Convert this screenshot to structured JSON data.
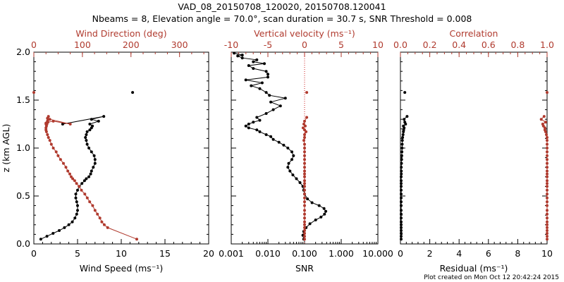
{
  "header": {
    "title_line1": "VAD_08_20150708_120020, 20150708.120041",
    "title_line2": "Nbeams = 8, Elevation angle = 70.0°, scan duration = 30.7 s, SNR Threshold = 0.008"
  },
  "footer": {
    "created": "Plot created on Mon Oct 12 20:42:24 2015"
  },
  "colors": {
    "black": "#000000",
    "red": "#b03a2e",
    "grid_red": "#cc2222"
  },
  "chart_data": [
    {
      "type": "line",
      "name": "wind-panel",
      "ylabel": "z (km AGL)",
      "ylim": [
        0,
        2
      ],
      "yticks": [
        "0.0",
        "0.5",
        "1.0",
        "1.5",
        "2.0"
      ],
      "bottom_axis": {
        "label": "Wind Speed (ms⁻¹)",
        "xlim": [
          0,
          20
        ],
        "ticks": [
          "0",
          "5",
          "10",
          "15",
          "20"
        ]
      },
      "top_axis": {
        "label": "Wind Direction (deg)",
        "xlim": [
          0,
          360
        ],
        "ticks": [
          "0",
          "100",
          "200",
          "300"
        ]
      },
      "series": [
        {
          "name": "Wind Speed",
          "axis": "bottom",
          "color": "#000000",
          "x": [
            0.8,
            1.5,
            2.2,
            2.9,
            3.5,
            4.0,
            4.4,
            4.7,
            4.9,
            5.0,
            5.0,
            4.9,
            4.8,
            4.8,
            5.0,
            5.2,
            5.5,
            5.8,
            6.0,
            6.3,
            6.5,
            6.6,
            6.8,
            7.0,
            7.0,
            6.9,
            6.6,
            6.3,
            6.1,
            6.0,
            5.9,
            6.0,
            6.1,
            6.4,
            6.6,
            6.7,
            6.4,
            7.4,
            6.6,
            8.0,
            3.3
          ],
          "z": [
            0.05,
            0.08,
            0.11,
            0.14,
            0.17,
            0.2,
            0.23,
            0.27,
            0.31,
            0.35,
            0.4,
            0.44,
            0.48,
            0.52,
            0.56,
            0.6,
            0.63,
            0.66,
            0.68,
            0.7,
            0.73,
            0.76,
            0.8,
            0.84,
            0.88,
            0.92,
            0.96,
            1.0,
            1.04,
            1.08,
            1.11,
            1.14,
            1.17,
            1.19,
            1.21,
            1.23,
            1.25,
            1.28,
            1.3,
            1.33,
            1.25
          ]
        },
        {
          "name": "Wind Speed (isolated)",
          "axis": "bottom",
          "color": "#000000",
          "x": [
            11.3
          ],
          "z": [
            1.58
          ]
        },
        {
          "name": "Wind Direction",
          "axis": "top",
          "color": "#b03a2e",
          "x": [
            212,
            152,
            145,
            140,
            136,
            131,
            126,
            121,
            115,
            110,
            105,
            98,
            93,
            88,
            84,
            80,
            77,
            74,
            70,
            66,
            61,
            55,
            50,
            46,
            40,
            36,
            33,
            30,
            28,
            26,
            25,
            25,
            26,
            27,
            28,
            30,
            30,
            28,
            25,
            25,
            29,
            40,
            75,
            33
          ],
          "z": [
            0.05,
            0.17,
            0.2,
            0.23,
            0.27,
            0.31,
            0.35,
            0.4,
            0.44,
            0.48,
            0.52,
            0.56,
            0.6,
            0.63,
            0.66,
            0.68,
            0.7,
            0.73,
            0.76,
            0.8,
            0.84,
            0.88,
            0.92,
            0.96,
            1.0,
            1.04,
            1.08,
            1.11,
            1.14,
            1.17,
            1.19,
            1.21,
            1.23,
            1.25,
            1.28,
            1.3,
            1.33,
            1.31,
            1.26,
            1.25,
            1.27,
            1.28,
            1.25,
            1.3
          ]
        },
        {
          "name": "Wind Direction (isolated)",
          "axis": "top",
          "color": "#b03a2e",
          "x": [
            0
          ],
          "z": [
            1.58
          ]
        }
      ]
    },
    {
      "type": "line",
      "name": "snr-panel",
      "ylim": [
        0,
        2
      ],
      "bottom_axis": {
        "label": "SNR",
        "scale": "log",
        "xlim": [
          0.001,
          10
        ],
        "ticks": [
          "0.001",
          "0.010",
          "0.100",
          "1.000",
          "10.000"
        ]
      },
      "top_axis": {
        "label": "Vertical velocity (ms⁻¹)",
        "xlim": [
          -10,
          10
        ],
        "ticks": [
          "-10",
          "-5",
          "0",
          "5",
          "10"
        ]
      },
      "zero_line": {
        "axis": "top",
        "value": 0,
        "style": "dotted"
      },
      "series": [
        {
          "name": "SNR",
          "axis": "bottom",
          "color": "#000000",
          "x": [
            0.095,
            0.09,
            0.095,
            0.11,
            0.14,
            0.2,
            0.28,
            0.35,
            0.38,
            0.34,
            0.25,
            0.16,
            0.12,
            0.1,
            0.095,
            0.09,
            0.075,
            0.06,
            0.048,
            0.04,
            0.035,
            0.037,
            0.045,
            0.05,
            0.045,
            0.035,
            0.027,
            0.02,
            0.014,
            0.012,
            0.009,
            0.006,
            0.005,
            0.003,
            0.0025,
            0.003,
            0.004,
            0.006,
            0.005,
            0.009,
            0.014,
            0.022,
            0.012,
            0.03,
            0.011,
            0.009,
            0.006,
            0.0035,
            0.007,
            0.0025,
            0.01,
            0.01,
            0.009,
            0.004,
            0.003,
            0.008,
            0.004,
            0.005,
            0.002,
            0.0015,
            0.002,
            0.0012
          ],
          "z": [
            0.05,
            0.09,
            0.13,
            0.17,
            0.21,
            0.25,
            0.28,
            0.31,
            0.34,
            0.37,
            0.4,
            0.43,
            0.47,
            0.52,
            0.56,
            0.6,
            0.64,
            0.68,
            0.72,
            0.76,
            0.8,
            0.84,
            0.88,
            0.92,
            0.96,
            1.0,
            1.03,
            1.06,
            1.09,
            1.12,
            1.14,
            1.17,
            1.19,
            1.21,
            1.23,
            1.25,
            1.27,
            1.29,
            1.32,
            1.36,
            1.4,
            1.44,
            1.48,
            1.52,
            1.55,
            1.58,
            1.62,
            1.65,
            1.68,
            1.71,
            1.74,
            1.77,
            1.8,
            1.83,
            1.86,
            1.88,
            1.9,
            1.92,
            1.94,
            1.96,
            1.97,
            1.99
          ]
        },
        {
          "name": "Vertical velocity",
          "axis": "top",
          "color": "#b03a2e",
          "x": [
            0,
            0,
            0,
            0,
            0,
            0,
            0,
            0,
            0,
            0,
            0,
            0,
            0,
            0,
            0,
            0,
            0,
            0,
            0,
            0,
            0,
            0,
            0,
            0,
            0,
            0,
            0,
            0,
            -0.1,
            0,
            0,
            0.2,
            0,
            -0.2,
            0.1,
            -0.1,
            0,
            0.3
          ],
          "z": [
            0.05,
            0.08,
            0.11,
            0.14,
            0.17,
            0.2,
            0.23,
            0.27,
            0.31,
            0.35,
            0.4,
            0.44,
            0.48,
            0.52,
            0.56,
            0.6,
            0.63,
            0.66,
            0.7,
            0.73,
            0.76,
            0.8,
            0.84,
            0.88,
            0.92,
            0.96,
            1.0,
            1.04,
            1.08,
            1.11,
            1.14,
            1.17,
            1.19,
            1.21,
            1.23,
            1.25,
            1.28,
            1.32
          ]
        },
        {
          "name": "Vertical velocity (isolated)",
          "axis": "top",
          "color": "#b03a2e",
          "x": [
            0.3
          ],
          "z": [
            1.58
          ]
        }
      ]
    },
    {
      "type": "line",
      "name": "residual-panel",
      "ylim": [
        0,
        2
      ],
      "bottom_axis": {
        "label": "Residual (ms⁻¹)",
        "xlim": [
          0,
          10
        ],
        "ticks": [
          "0",
          "2",
          "4",
          "6",
          "8",
          "10"
        ]
      },
      "top_axis": {
        "label": "Correlation",
        "xlim": [
          0,
          1
        ],
        "ticks": [
          "0.0",
          "0.2",
          "0.4",
          "0.6",
          "0.8",
          "1.0"
        ]
      },
      "series": [
        {
          "name": "Residual",
          "axis": "bottom",
          "color": "#000000",
          "x": [
            0.05,
            0.05,
            0.05,
            0.05,
            0.05,
            0.05,
            0.05,
            0.05,
            0.05,
            0.05,
            0.05,
            0.05,
            0.05,
            0.05,
            0.05,
            0.05,
            0.05,
            0.05,
            0.05,
            0.06,
            0.06,
            0.06,
            0.07,
            0.08,
            0.09,
            0.1,
            0.11,
            0.12,
            0.13,
            0.15,
            0.18,
            0.2,
            0.22,
            0.25,
            0.2,
            0.35,
            0.3,
            0.25,
            0.45
          ],
          "z": [
            0.05,
            0.08,
            0.11,
            0.14,
            0.17,
            0.2,
            0.23,
            0.27,
            0.31,
            0.35,
            0.4,
            0.44,
            0.48,
            0.52,
            0.56,
            0.6,
            0.63,
            0.66,
            0.7,
            0.73,
            0.76,
            0.8,
            0.84,
            0.88,
            0.92,
            0.96,
            1.0,
            1.04,
            1.08,
            1.11,
            1.14,
            1.17,
            1.19,
            1.21,
            1.23,
            1.25,
            1.27,
            1.3,
            1.33
          ]
        },
        {
          "name": "Residual (isolated)",
          "axis": "bottom",
          "color": "#000000",
          "x": [
            0.3
          ],
          "z": [
            1.58
          ]
        },
        {
          "name": "Correlation",
          "axis": "top",
          "color": "#b03a2e",
          "x": [
            1,
            1,
            1,
            1,
            1,
            1,
            1,
            1,
            1,
            1,
            1,
            1,
            1,
            1,
            1,
            1,
            1,
            1,
            1,
            1,
            1,
            1,
            1,
            1,
            1,
            1,
            1,
            1,
            1,
            1,
            0.995,
            0.99,
            0.985,
            0.985,
            0.975,
            0.97,
            0.99,
            0.96,
            0.98
          ],
          "z": [
            0.05,
            0.08,
            0.11,
            0.14,
            0.17,
            0.2,
            0.23,
            0.27,
            0.31,
            0.35,
            0.4,
            0.44,
            0.48,
            0.52,
            0.56,
            0.6,
            0.63,
            0.66,
            0.7,
            0.73,
            0.76,
            0.8,
            0.84,
            0.88,
            0.92,
            0.96,
            1.0,
            1.04,
            1.08,
            1.11,
            1.14,
            1.17,
            1.19,
            1.21,
            1.23,
            1.25,
            1.27,
            1.3,
            1.33
          ]
        },
        {
          "name": "Correlation (isolated)",
          "axis": "top",
          "color": "#b03a2e",
          "x": [
            1.0
          ],
          "z": [
            1.58
          ]
        }
      ]
    }
  ]
}
